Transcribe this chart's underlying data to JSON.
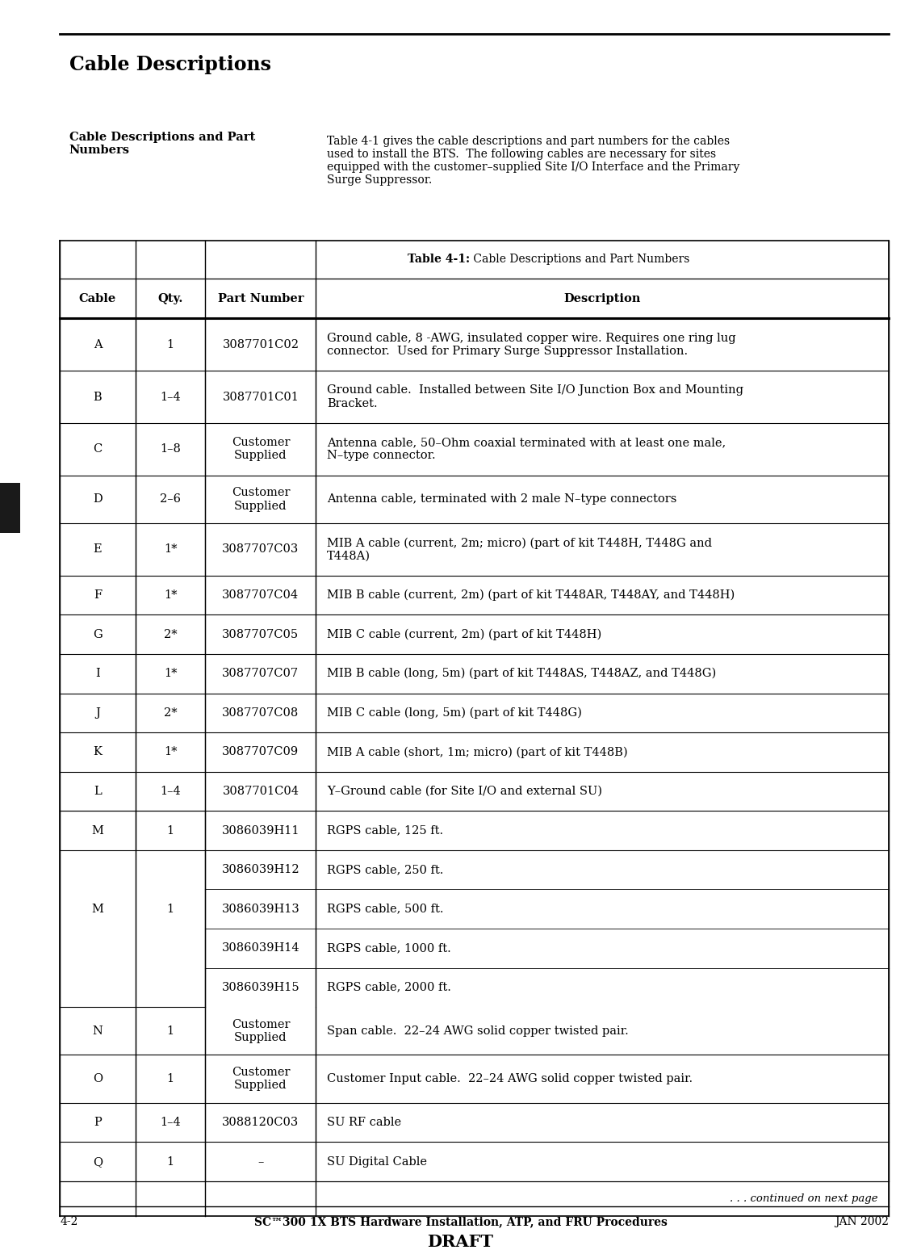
{
  "page_title": "Cable Descriptions",
  "section_title": "Cable Descriptions and Part\nNumbers",
  "intro_text": "Table 4-1 gives the cable descriptions and part numbers for the cables\nused to install the BTS.  The following cables are necessary for sites\nequipped with the customer–supplied Site I/O Interface and the Primary\nSurge Suppressor.",
  "table_title_bold": "Table 4-1:",
  "table_title_normal": " Cable Descriptions and Part Numbers",
  "col_headers": [
    "Cable",
    "Qty.",
    "Part Number",
    "Description"
  ],
  "rows": [
    {
      "cable": "A",
      "qty": "1",
      "part": "3087701C02",
      "desc": "Ground cable, 8 -AWG, insulated copper wire. Requires one ring lug\nconnector.  Used for Primary Surge Suppressor Installation.",
      "show_cable": true,
      "two_desc_lines": true
    },
    {
      "cable": "B",
      "qty": "1–4",
      "part": "3087701C01",
      "desc": "Ground cable.  Installed between Site I/O Junction Box and Mounting\nBracket.",
      "show_cable": true,
      "two_desc_lines": true
    },
    {
      "cable": "C",
      "qty": "1–8",
      "part": "Customer\nSupplied",
      "desc": "Antenna cable, 50–Ohm coaxial terminated with at least one male,\nN–type connector.",
      "show_cable": true,
      "two_desc_lines": true
    },
    {
      "cable": "D",
      "qty": "2–6",
      "part": "Customer\nSupplied",
      "desc": "Antenna cable, terminated with 2 male N–type connectors",
      "show_cable": true,
      "two_desc_lines": false
    },
    {
      "cable": "E",
      "qty": "1*",
      "part": "3087707C03",
      "desc": "MIB A cable (current, 2m; micro) (part of kit T448H, T448G and\nT448A)",
      "show_cable": true,
      "two_desc_lines": true
    },
    {
      "cable": "F",
      "qty": "1*",
      "part": "3087707C04",
      "desc": "MIB B cable (current, 2m) (part of kit T448AR, T448AY, and T448H)",
      "show_cable": true,
      "two_desc_lines": false
    },
    {
      "cable": "G",
      "qty": "2*",
      "part": "3087707C05",
      "desc": "MIB C cable (current, 2m) (part of kit T448H)",
      "show_cable": true,
      "two_desc_lines": false
    },
    {
      "cable": "I",
      "qty": "1*",
      "part": "3087707C07",
      "desc": "MIB B cable (long, 5m) (part of kit T448AS, T448AZ, and T448G)",
      "show_cable": true,
      "two_desc_lines": false
    },
    {
      "cable": "J",
      "qty": "2*",
      "part": "3087707C08",
      "desc": "MIB C cable (long, 5m) (part of kit T448G)",
      "show_cable": true,
      "two_desc_lines": false
    },
    {
      "cable": "K",
      "qty": "1*",
      "part": "3087707C09",
      "desc": "MIB A cable (short, 1m; micro) (part of kit T448B)",
      "show_cable": true,
      "two_desc_lines": false
    },
    {
      "cable": "L",
      "qty": "1–4",
      "part": "3087701C04",
      "desc": "Y–Ground cable (for Site I/O and external SU)",
      "show_cable": true,
      "two_desc_lines": false
    },
    {
      "cable": "M",
      "qty": "1",
      "part": "3086039H11",
      "desc": "RGPS cable, 125 ft.",
      "show_cable": true,
      "two_desc_lines": false,
      "m_sub": 0
    },
    {
      "cable": "",
      "qty": "",
      "part": "3086039H12",
      "desc": "RGPS cable, 250 ft.",
      "show_cable": false,
      "two_desc_lines": false,
      "m_sub": 1
    },
    {
      "cable": "",
      "qty": "",
      "part": "3086039H13",
      "desc": "RGPS cable, 500 ft.",
      "show_cable": false,
      "two_desc_lines": false,
      "m_sub": 2
    },
    {
      "cable": "",
      "qty": "",
      "part": "3086039H14",
      "desc": "RGPS cable, 1000 ft.",
      "show_cable": false,
      "two_desc_lines": false,
      "m_sub": 3
    },
    {
      "cable": "",
      "qty": "",
      "part": "3086039H15",
      "desc": "RGPS cable, 2000 ft.",
      "show_cable": false,
      "two_desc_lines": false,
      "m_sub": 4
    },
    {
      "cable": "N",
      "qty": "1",
      "part": "Customer\nSupplied",
      "desc": "Span cable.  22–24 AWG solid copper twisted pair.",
      "show_cable": true,
      "two_desc_lines": false
    },
    {
      "cable": "O",
      "qty": "1",
      "part": "Customer\nSupplied",
      "desc": "Customer Input cable.  22–24 AWG solid copper twisted pair.",
      "show_cable": true,
      "two_desc_lines": false
    },
    {
      "cable": "P",
      "qty": "1–4",
      "part": "3088120C03",
      "desc": "SU RF cable",
      "show_cable": true,
      "two_desc_lines": false
    },
    {
      "cable": "Q",
      "qty": "1",
      "part": "–",
      "desc": "SU Digital Cable",
      "show_cable": true,
      "two_desc_lines": false
    }
  ],
  "footer_continued": ". . . continued on next page",
  "footer_left": "4-2",
  "footer_center": "SC™300 1X BTS Hardware Installation, ATP, and FRU Procedures",
  "footer_right": "JAN 2002",
  "footer_draft": "DRAFT",
  "page_num": "4",
  "bg_color": "#ffffff"
}
